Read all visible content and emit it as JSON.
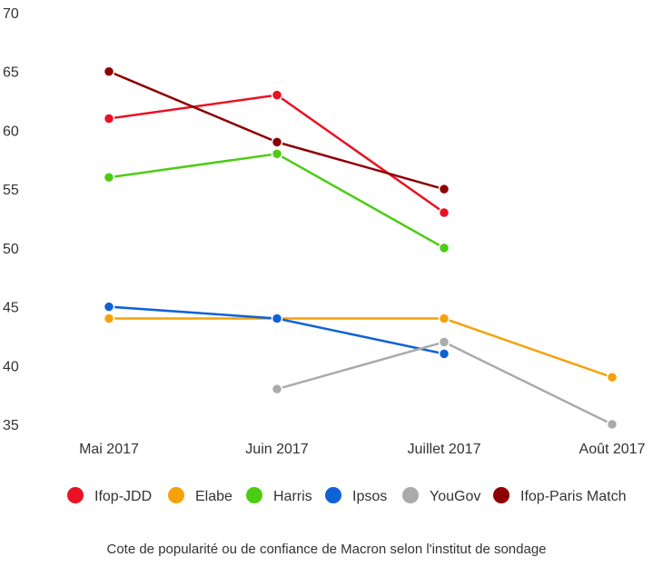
{
  "chart_data": {
    "type": "line",
    "title": "",
    "caption": "Cote de popularité ou de confiance de Macron selon l'institut de sondage",
    "categories": [
      "Mai 2017",
      "Juin 2017",
      "Juillet 2017",
      "Août 2017"
    ],
    "ylim": [
      35,
      70
    ],
    "yticks": [
      35,
      40,
      45,
      50,
      55,
      60,
      65,
      70
    ],
    "xlabel": "",
    "ylabel": "",
    "legend_position": "bottom",
    "series": [
      {
        "name": "Ifop-JDD",
        "color": "#ea1123",
        "values": [
          61,
          63,
          53,
          null
        ]
      },
      {
        "name": "Elabe",
        "color": "#f5a20a",
        "values": [
          44,
          44,
          44,
          39
        ]
      },
      {
        "name": "Harris",
        "color": "#4ccc12",
        "values": [
          56,
          58,
          50,
          null
        ]
      },
      {
        "name": "Ipsos",
        "color": "#0f62d6",
        "values": [
          45,
          44,
          41,
          null
        ]
      },
      {
        "name": "YouGov",
        "color": "#aaaaaa",
        "values": [
          null,
          38,
          42,
          35
        ]
      },
      {
        "name": "Ifop-Paris Match",
        "color": "#8d0000",
        "values": [
          65,
          59,
          55,
          null
        ]
      }
    ]
  }
}
